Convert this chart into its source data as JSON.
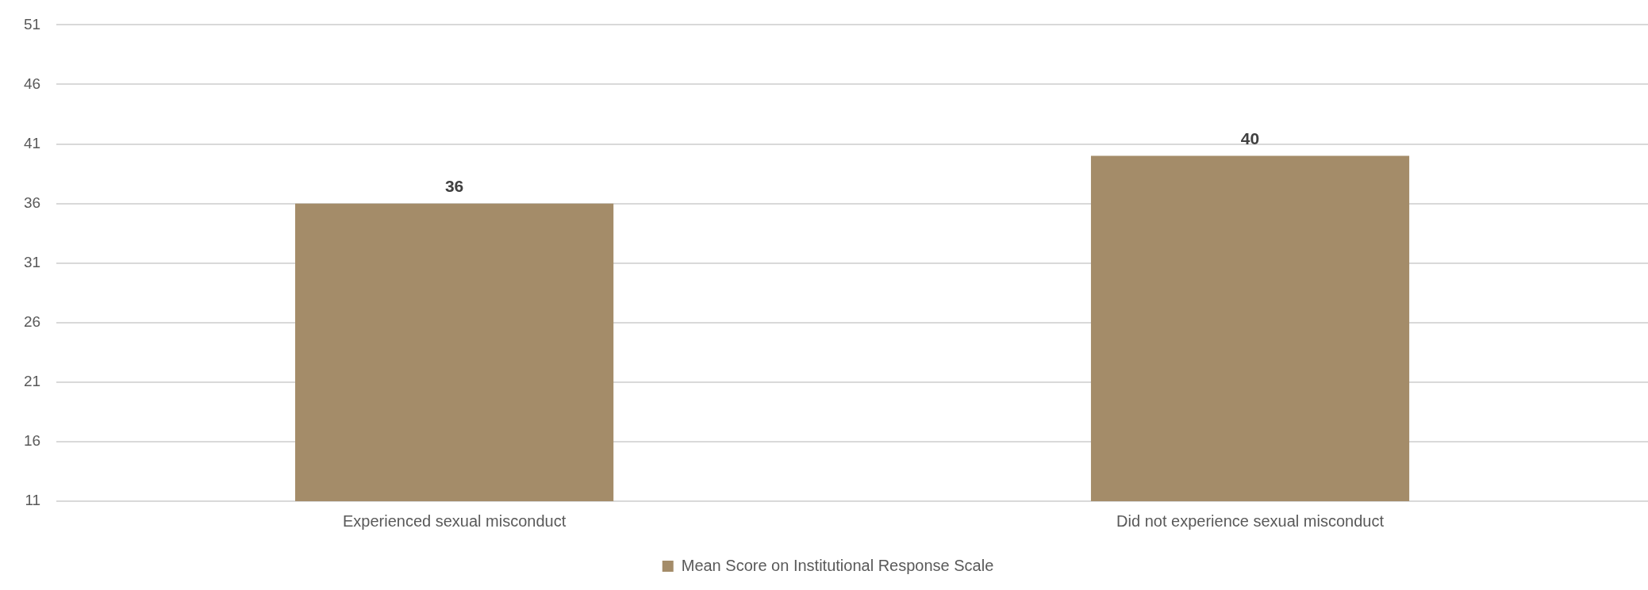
{
  "chart_data": {
    "type": "bar",
    "categories": [
      "Experienced sexual misconduct",
      "Did not experience sexual misconduct"
    ],
    "series": [
      {
        "name": "Mean Score on Institutional Response Scale",
        "color": "#a48c69",
        "values": [
          36,
          40
        ]
      }
    ],
    "ylim": [
      11,
      51
    ],
    "yticks": [
      11,
      16,
      21,
      26,
      31,
      36,
      41,
      46,
      51
    ],
    "grid": "y",
    "legend": "bottom",
    "data_labels": true
  }
}
